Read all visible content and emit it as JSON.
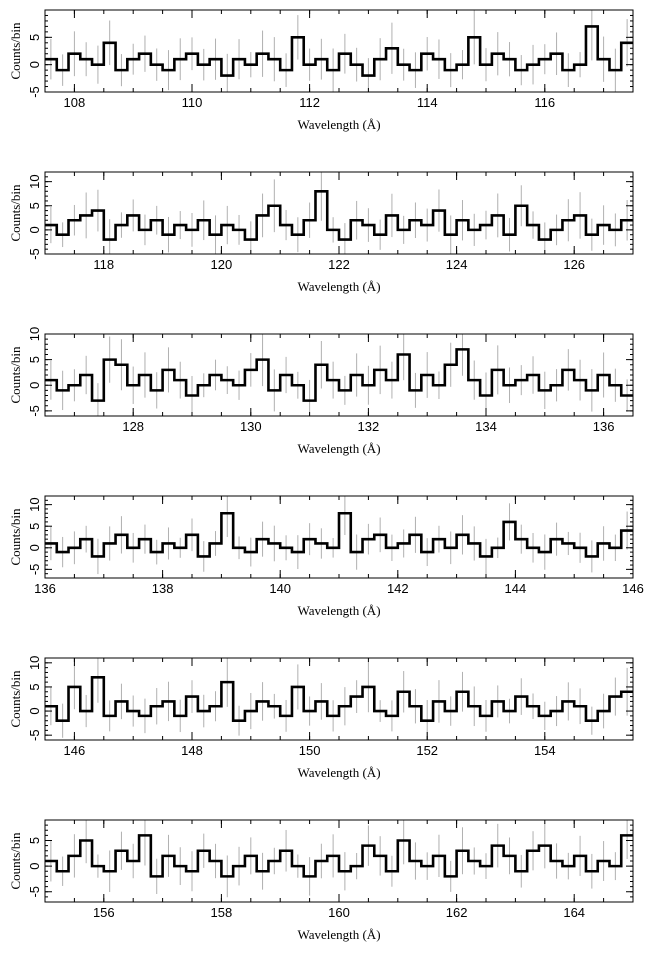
{
  "chart_data": [
    {
      "type": "line",
      "style": "histogram-step with error bars",
      "xlabel": "Wavelength (Å)",
      "ylabel": "Counts/bin",
      "xlim": [
        107.5,
        117.5
      ],
      "ylim": [
        -5,
        10
      ],
      "xticks": [
        108,
        110,
        112,
        114,
        116
      ],
      "yticks": [
        -5,
        0,
        5
      ],
      "x": [
        107.6,
        107.8,
        108.0,
        108.2,
        108.4,
        108.6,
        108.8,
        109.0,
        109.2,
        109.4,
        109.6,
        109.8,
        110.0,
        110.2,
        110.4,
        110.6,
        110.8,
        111.0,
        111.2,
        111.4,
        111.6,
        111.8,
        112.0,
        112.2,
        112.4,
        112.6,
        112.8,
        113.0,
        113.2,
        113.4,
        113.6,
        113.8,
        114.0,
        114.2,
        114.4,
        114.6,
        114.8,
        115.0,
        115.2,
        115.4,
        115.6,
        115.8,
        116.0,
        116.2,
        116.4,
        116.6,
        116.8,
        117.0,
        117.2,
        117.4
      ],
      "y": [
        1,
        -1,
        2,
        1,
        0,
        4,
        -1,
        1,
        2,
        0,
        -1,
        1,
        2,
        0,
        1,
        -2,
        1,
        0,
        2,
        1,
        -1,
        5,
        0,
        1,
        -1,
        2,
        0,
        -2,
        1,
        3,
        0,
        -1,
        2,
        1,
        -1,
        0,
        5,
        0,
        2,
        1,
        -1,
        0,
        1,
        2,
        -1,
        0,
        7,
        1,
        -1,
        4
      ]
    },
    {
      "type": "line",
      "style": "histogram-step with error bars",
      "xlabel": "Wavelength (Å)",
      "ylabel": "Counts/bin",
      "xlim": [
        117.0,
        127.0
      ],
      "ylim": [
        -5,
        12
      ],
      "xticks": [
        118,
        120,
        122,
        124,
        126
      ],
      "yticks": [
        -5,
        0,
        5,
        10
      ],
      "x": [
        117.1,
        117.3,
        117.5,
        117.7,
        117.9,
        118.1,
        118.3,
        118.5,
        118.7,
        118.9,
        119.1,
        119.3,
        119.5,
        119.7,
        119.9,
        120.1,
        120.3,
        120.5,
        120.7,
        120.9,
        121.1,
        121.3,
        121.5,
        121.7,
        121.9,
        122.1,
        122.3,
        122.5,
        122.7,
        122.9,
        123.1,
        123.3,
        123.5,
        123.7,
        123.9,
        124.1,
        124.3,
        124.5,
        124.7,
        124.9,
        125.1,
        125.3,
        125.5,
        125.7,
        125.9,
        126.1,
        126.3,
        126.5,
        126.7,
        126.9
      ],
      "y": [
        1,
        -1,
        2,
        3,
        4,
        -2,
        1,
        3,
        0,
        2,
        -1,
        1,
        0,
        2,
        -1,
        1,
        0,
        -2,
        3,
        5,
        1,
        -1,
        2,
        8,
        0,
        -2,
        2,
        1,
        -1,
        3,
        0,
        2,
        1,
        4,
        -1,
        2,
        0,
        1,
        3,
        -1,
        5,
        1,
        -2,
        0,
        2,
        3,
        -1,
        1,
        0,
        2
      ]
    },
    {
      "type": "line",
      "style": "histogram-step with error bars",
      "xlabel": "Wavelength (Å)",
      "ylabel": "Counts/bin",
      "xlim": [
        126.5,
        136.5
      ],
      "ylim": [
        -6,
        10
      ],
      "xticks": [
        128,
        130,
        132,
        134,
        136
      ],
      "yticks": [
        -5,
        0,
        5,
        10
      ],
      "x": [
        126.6,
        126.8,
        127.0,
        127.2,
        127.4,
        127.6,
        127.8,
        128.0,
        128.2,
        128.4,
        128.6,
        128.8,
        129.0,
        129.2,
        129.4,
        129.6,
        129.8,
        130.0,
        130.2,
        130.4,
        130.6,
        130.8,
        131.0,
        131.2,
        131.4,
        131.6,
        131.8,
        132.0,
        132.2,
        132.4,
        132.6,
        132.8,
        133.0,
        133.2,
        133.4,
        133.6,
        133.8,
        134.0,
        134.2,
        134.4,
        134.6,
        134.8,
        135.0,
        135.2,
        135.4,
        135.6,
        135.8,
        136.0,
        136.2,
        136.4
      ],
      "y": [
        1,
        -1,
        0,
        2,
        -3,
        5,
        4,
        0,
        2,
        -1,
        3,
        1,
        -2,
        0,
        2,
        1,
        0,
        3,
        5,
        -1,
        2,
        0,
        -3,
        4,
        1,
        -1,
        2,
        0,
        3,
        1,
        6,
        -1,
        2,
        0,
        4,
        7,
        1,
        -2,
        3,
        0,
        1,
        2,
        -1,
        0,
        3,
        1,
        -1,
        2,
        0,
        -2
      ]
    },
    {
      "type": "line",
      "style": "histogram-step with error bars",
      "xlabel": "Wavelength (Å)",
      "ylabel": "Counts/bin",
      "xlim": [
        136,
        146
      ],
      "ylim": [
        -7,
        12
      ],
      "xticks": [
        136,
        138,
        140,
        142,
        144,
        146
      ],
      "yticks": [
        -5,
        0,
        5,
        10
      ],
      "x": [
        136.1,
        136.3,
        136.5,
        136.7,
        136.9,
        137.1,
        137.3,
        137.5,
        137.7,
        137.9,
        138.1,
        138.3,
        138.5,
        138.7,
        138.9,
        139.1,
        139.3,
        139.5,
        139.7,
        139.9,
        140.1,
        140.3,
        140.5,
        140.7,
        140.9,
        141.1,
        141.3,
        141.5,
        141.7,
        141.9,
        142.1,
        142.3,
        142.5,
        142.7,
        142.9,
        143.1,
        143.3,
        143.5,
        143.7,
        143.9,
        144.1,
        144.3,
        144.5,
        144.7,
        144.9,
        145.1,
        145.3,
        145.5,
        145.7,
        145.9
      ],
      "y": [
        1,
        -1,
        0,
        2,
        -2,
        1,
        3,
        0,
        2,
        -1,
        1,
        0,
        3,
        -2,
        1,
        8,
        0,
        -1,
        2,
        1,
        0,
        -1,
        2,
        1,
        0,
        8,
        -1,
        2,
        3,
        0,
        1,
        3,
        -1,
        2,
        0,
        3,
        1,
        -2,
        0,
        6,
        2,
        0,
        -1,
        2,
        1,
        0,
        -2,
        1,
        0,
        4
      ]
    },
    {
      "type": "line",
      "style": "histogram-step with error bars",
      "xlabel": "Wavelength (Å)",
      "ylabel": "Counts/bin",
      "xlim": [
        145.5,
        155.5
      ],
      "ylim": [
        -6,
        11
      ],
      "xticks": [
        146,
        148,
        150,
        152,
        154
      ],
      "yticks": [
        -5,
        0,
        5,
        10
      ],
      "x": [
        145.6,
        145.8,
        146.0,
        146.2,
        146.4,
        146.6,
        146.8,
        147.0,
        147.2,
        147.4,
        147.6,
        147.8,
        148.0,
        148.2,
        148.4,
        148.6,
        148.8,
        149.0,
        149.2,
        149.4,
        149.6,
        149.8,
        150.0,
        150.2,
        150.4,
        150.6,
        150.8,
        151.0,
        151.2,
        151.4,
        151.6,
        151.8,
        152.0,
        152.2,
        152.4,
        152.6,
        152.8,
        153.0,
        153.2,
        153.4,
        153.6,
        153.8,
        154.0,
        154.2,
        154.4,
        154.6,
        154.8,
        155.0,
        155.2,
        155.4
      ],
      "y": [
        1,
        -2,
        5,
        0,
        7,
        -1,
        2,
        0,
        -1,
        1,
        2,
        -1,
        3,
        0,
        1,
        6,
        -2,
        0,
        2,
        1,
        -1,
        5,
        0,
        2,
        -1,
        1,
        3,
        5,
        0,
        -1,
        4,
        1,
        -2,
        2,
        0,
        4,
        1,
        -1,
        2,
        0,
        3,
        1,
        -1,
        0,
        2,
        1,
        -2,
        0,
        3,
        4
      ]
    },
    {
      "type": "line",
      "style": "histogram-step with error bars",
      "xlabel": "Wavelength (Å)",
      "ylabel": "Counts/bin",
      "xlim": [
        155,
        165
      ],
      "ylim": [
        -7,
        9
      ],
      "xticks": [
        156,
        158,
        160,
        162,
        164
      ],
      "yticks": [
        -5,
        0,
        5
      ],
      "x": [
        155.1,
        155.3,
        155.5,
        155.7,
        155.9,
        156.1,
        156.3,
        156.5,
        156.7,
        156.9,
        157.1,
        157.3,
        157.5,
        157.7,
        157.9,
        158.1,
        158.3,
        158.5,
        158.7,
        158.9,
        159.1,
        159.3,
        159.5,
        159.7,
        159.9,
        160.1,
        160.3,
        160.5,
        160.7,
        160.9,
        161.1,
        161.3,
        161.5,
        161.7,
        161.9,
        162.1,
        162.3,
        162.5,
        162.7,
        162.9,
        163.1,
        163.3,
        163.5,
        163.7,
        163.9,
        164.1,
        164.3,
        164.5,
        164.7,
        164.9
      ],
      "y": [
        1,
        -1,
        2,
        5,
        0,
        -1,
        3,
        1,
        6,
        -2,
        2,
        0,
        -1,
        3,
        1,
        -2,
        0,
        2,
        -1,
        1,
        3,
        0,
        -2,
        1,
        2,
        -1,
        0,
        4,
        2,
        -1,
        5,
        1,
        0,
        2,
        -2,
        3,
        1,
        0,
        4,
        2,
        -1,
        3,
        4,
        1,
        0,
        2,
        -1,
        1,
        0,
        6
      ]
    }
  ]
}
